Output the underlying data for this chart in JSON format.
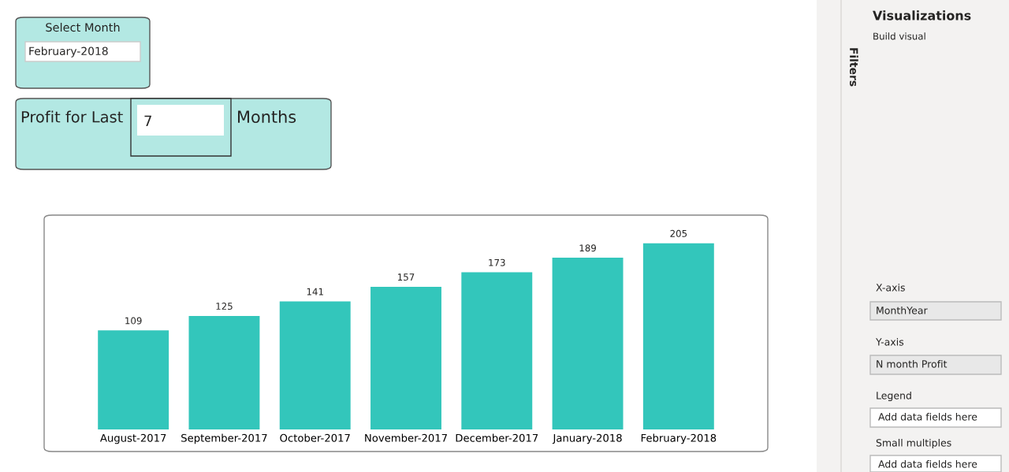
{
  "chart_data": {
    "type": "bar",
    "categories": [
      "August-2017",
      "September-2017",
      "October-2017",
      "November-2017",
      "December-2017",
      "January-2018",
      "February-2018"
    ],
    "values": [
      109,
      125,
      141,
      157,
      173,
      189,
      205
    ],
    "color": "#33c6bb",
    "data_labels": true,
    "grid": false,
    "tick_labels": "x",
    "annotations": [
      "Select Month",
      "February-2018",
      "Profit for Last",
      "7",
      "Months",
      "Filters",
      "Visualizations",
      "Build visual",
      "X-axis",
      "MonthYear",
      "Y-axis",
      "N month Profit",
      "Legend",
      "Add data fields here",
      "Small multiples",
      "Add data fields here"
    ]
  }
}
